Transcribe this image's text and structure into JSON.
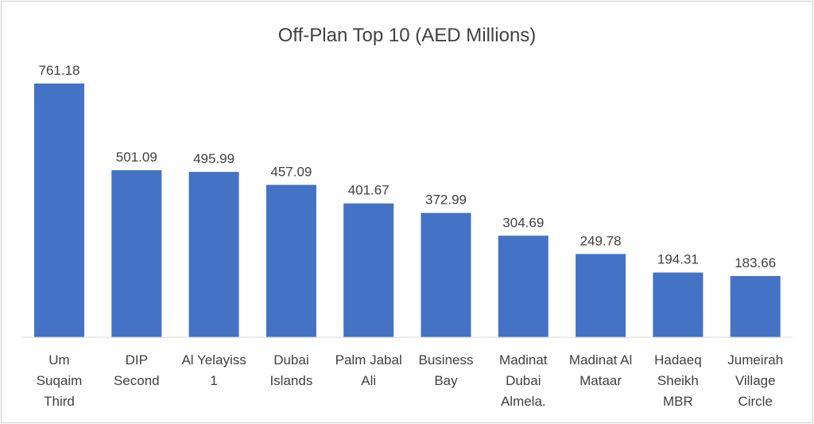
{
  "chart_data": {
    "type": "bar",
    "title": "Off-Plan Top 10 (AED Millions)",
    "xlabel": "",
    "ylabel": "",
    "categories": [
      [
        "Um",
        "Suqaim",
        "Third"
      ],
      [
        "DIP",
        "Second"
      ],
      [
        "Al Yelayiss",
        "1"
      ],
      [
        "Dubai",
        "Islands"
      ],
      [
        "Palm Jabal",
        "Ali"
      ],
      [
        "Business",
        "Bay"
      ],
      [
        "Madinat",
        "Dubai",
        "Almela."
      ],
      [
        "Madinat Al",
        "Mataar"
      ],
      [
        "Hadaeq",
        "Sheikh",
        "MBR"
      ],
      [
        "Jumeirah",
        "Village",
        "Circle"
      ]
    ],
    "values": [
      761.18,
      501.09,
      495.99,
      457.09,
      401.67,
      372.99,
      304.69,
      249.78,
      194.31,
      183.66
    ],
    "data_labels": [
      "761.18",
      "501.09",
      "495.99",
      "457.09",
      "401.67",
      "372.99",
      "304.69",
      "249.78",
      "194.31",
      "183.66"
    ],
    "ylim": [
      0,
      761.18
    ],
    "grid": false,
    "legend": "none",
    "bar_color": "#4472C4",
    "text_color": "#404040",
    "axis_color": "#d9d9d9"
  }
}
